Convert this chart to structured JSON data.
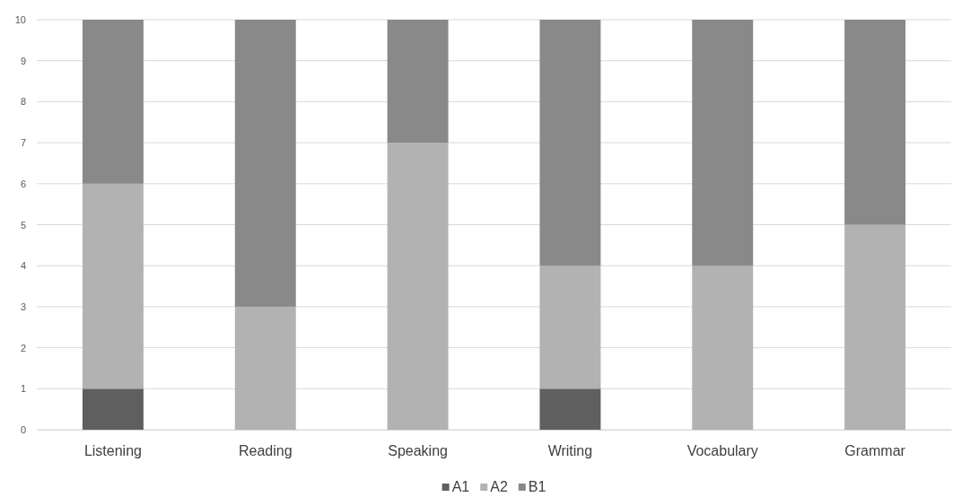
{
  "chart_data": {
    "type": "bar",
    "stacked": true,
    "categories": [
      "Listening",
      "Reading",
      "Speaking",
      "Writing",
      "Vocabulary",
      "Grammar"
    ],
    "series": [
      {
        "name": "A1",
        "color": "#5f5f5f",
        "values": [
          1,
          0,
          0,
          1,
          0,
          0
        ]
      },
      {
        "name": "A2",
        "color": "#b2b2b2",
        "values": [
          5,
          3,
          7,
          3,
          4,
          5
        ]
      },
      {
        "name": "B1",
        "color": "#898989",
        "values": [
          4,
          7,
          3,
          6,
          6,
          5
        ]
      }
    ],
    "ylim": [
      0,
      10
    ],
    "yticks": [
      0,
      1,
      2,
      3,
      4,
      5,
      6,
      7,
      8,
      9,
      10
    ],
    "grid": "y",
    "legend": "bottom"
  }
}
